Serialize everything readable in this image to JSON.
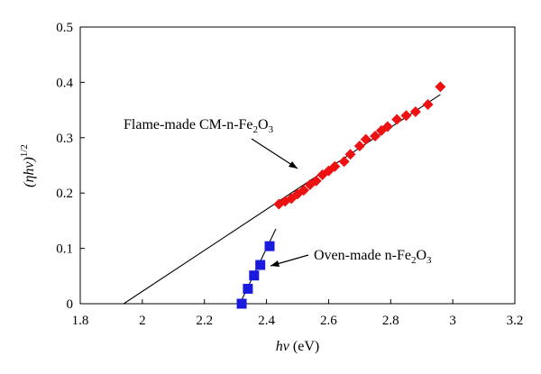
{
  "chart_data": {
    "type": "scatter",
    "xlabel_italic": "hν",
    "xlabel_unit": " (eV)",
    "ylabel_base": "(ηhν)",
    "ylabel_exp": "1/2",
    "xlim": [
      1.8,
      3.2
    ],
    "ylim": [
      0,
      0.5
    ],
    "xticks": [
      "1.8",
      "2",
      "2.2",
      "2.4",
      "2.6",
      "2.8",
      "3",
      "3.2"
    ],
    "yticks": [
      "0",
      "0.1",
      "0.2",
      "0.3",
      "0.4",
      "0.5"
    ],
    "grid": false,
    "series": [
      {
        "label_main": "Flame-made CM-n-Fe",
        "label_sub1": "2",
        "label_mid": "O",
        "label_sub2": "3",
        "marker": "diamond",
        "color": "#ee1111",
        "x": [
          2.44,
          2.46,
          2.48,
          2.5,
          2.52,
          2.54,
          2.56,
          2.58,
          2.6,
          2.62,
          2.65,
          2.67,
          2.7,
          2.72,
          2.75,
          2.77,
          2.79,
          2.82,
          2.85,
          2.88,
          2.92,
          2.96
        ],
        "y": [
          0.18,
          0.185,
          0.19,
          0.198,
          0.205,
          0.215,
          0.222,
          0.233,
          0.24,
          0.248,
          0.257,
          0.27,
          0.285,
          0.297,
          0.303,
          0.313,
          0.32,
          0.333,
          0.34,
          0.347,
          0.36,
          0.392
        ],
        "fit": {
          "x": [
            1.94,
            2.96
          ],
          "y": [
            0,
            0.378
          ]
        }
      },
      {
        "label_main": "Oven-made n-Fe",
        "label_sub1": "2",
        "label_mid": "O",
        "label_sub2": "3",
        "marker": "square",
        "color": "#1a1adf",
        "x": [
          2.32,
          2.34,
          2.36,
          2.38,
          2.41
        ],
        "y": [
          0,
          0.027,
          0.051,
          0.07,
          0.104
        ],
        "fit": {
          "x": [
            2.31,
            2.43
          ],
          "y": [
            -0.005,
            0.135
          ]
        }
      }
    ]
  }
}
